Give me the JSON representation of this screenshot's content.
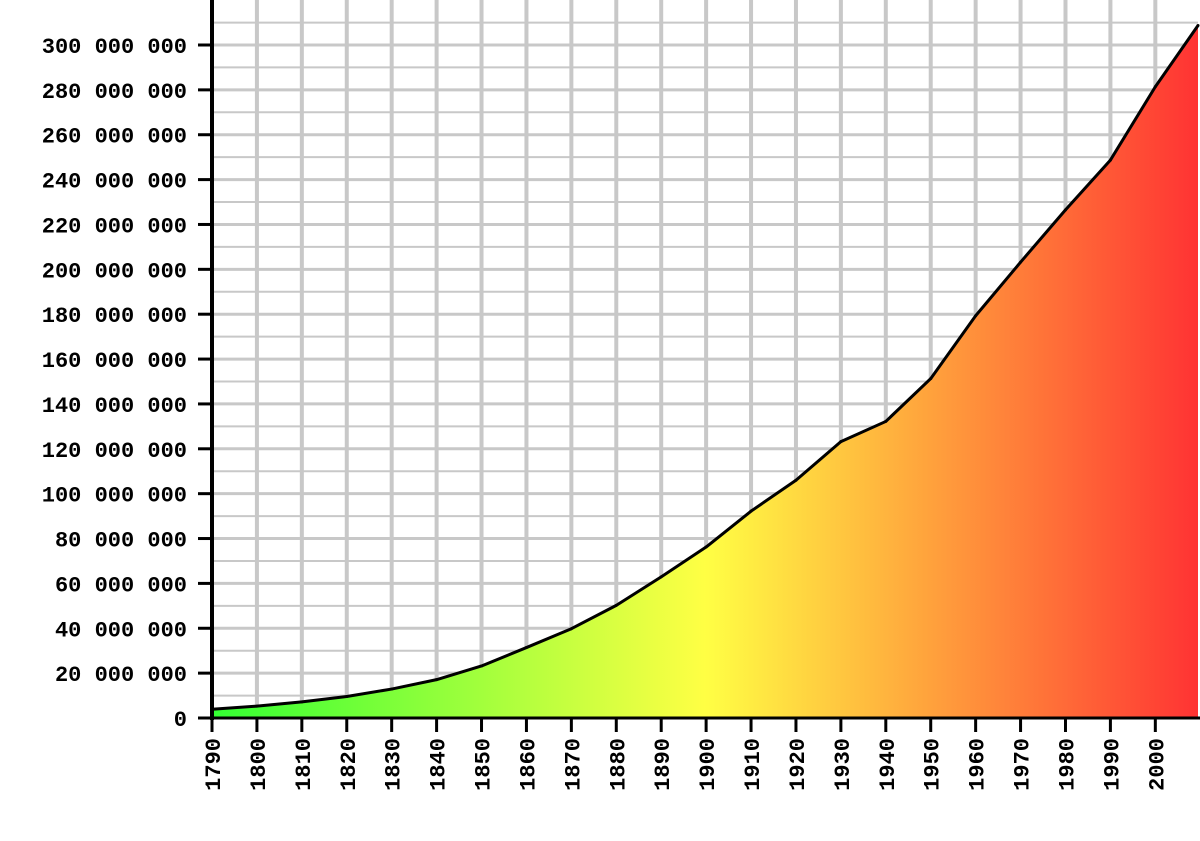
{
  "chart_data": {
    "type": "area",
    "title": "",
    "xlabel": "",
    "ylabel": "",
    "x": [
      1790,
      1800,
      1810,
      1820,
      1830,
      1840,
      1850,
      1860,
      1870,
      1880,
      1890,
      1900,
      1910,
      1920,
      1930,
      1940,
      1950,
      1960,
      1970,
      1980,
      1990,
      2000,
      2010
    ],
    "values": [
      3900000,
      5300000,
      7200000,
      9600000,
      12900000,
      17100000,
      23200000,
      31400000,
      39800000,
      50200000,
      62900000,
      76200000,
      92200000,
      106000000,
      123200000,
      132200000,
      151300000,
      179300000,
      203200000,
      226500000,
      248700000,
      281400000,
      308700000
    ],
    "x_ticks": [
      "1790",
      "1800",
      "1810",
      "1820",
      "1830",
      "1840",
      "1850",
      "1860",
      "1870",
      "1880",
      "1890",
      "1900",
      "1910",
      "1920",
      "1930",
      "1940",
      "1950",
      "1960",
      "1970",
      "1980",
      "1990",
      "2000"
    ],
    "y_ticks": [
      "0",
      "20 000 000",
      "40 000 000",
      "60 000 000",
      "80 000 000",
      "100 000 000",
      "120 000 000",
      "140 000 000",
      "160 000 000",
      "180 000 000",
      "200 000 000",
      "220 000 000",
      "240 000 000",
      "260 000 000",
      "280 000 000",
      "300 000 000"
    ],
    "xlim": [
      1790,
      2009.5
    ],
    "ylim": [
      0,
      320000000
    ],
    "grid": true,
    "legend": "none",
    "colors": {
      "grid": "#c8c8c8",
      "axis": "#000000",
      "line": "#000000",
      "gradient": [
        "#33ff33",
        "#ffff44",
        "#ff3333"
      ]
    }
  }
}
